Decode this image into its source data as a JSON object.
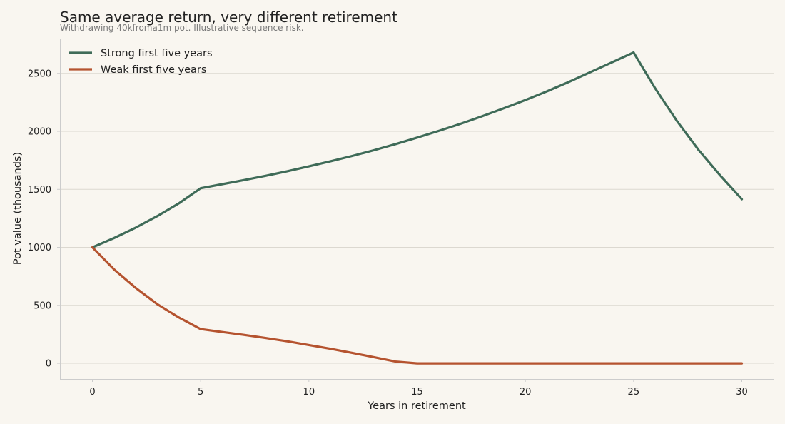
{
  "chart_data": {
    "type": "line",
    "title": "Same average return, very different retirement",
    "subtitle": "Withdrawing 40kfroma1m pot. Illustrative sequence risk.",
    "xlabel": "Years in retirement",
    "ylabel": "Pot value (thousands)",
    "xlim": [
      -1.5,
      31.5
    ],
    "ylim": [
      -135,
      2800
    ],
    "x_ticks": [
      0,
      5,
      10,
      15,
      20,
      25,
      30
    ],
    "y_ticks": [
      0,
      500,
      1000,
      1500,
      2000,
      2500
    ],
    "grid": "horizontal",
    "legend_position": "top-left",
    "x": [
      0,
      1,
      2,
      3,
      4,
      5,
      6,
      7,
      8,
      9,
      10,
      11,
      12,
      13,
      14,
      15,
      16,
      17,
      18,
      19,
      20,
      21,
      22,
      23,
      24,
      25,
      26,
      27,
      28,
      29,
      30
    ],
    "series": [
      {
        "name": "Strong first five years",
        "color": "#3f6b58",
        "values": [
          1000,
          1080,
          1170,
          1270,
          1380,
          1510,
          1545,
          1580,
          1617,
          1656,
          1698,
          1742,
          1788,
          1837,
          1890,
          1946,
          2004,
          2065,
          2130,
          2198,
          2270,
          2345,
          2425,
          2510,
          2595,
          2680,
          2370,
          2090,
          1840,
          1620,
          1415
        ]
      },
      {
        "name": "Weak first five years",
        "color": "#b5532f",
        "values": [
          1000,
          810,
          650,
          510,
          395,
          295,
          270,
          245,
          218,
          190,
          158,
          125,
          90,
          53,
          15,
          0,
          0,
          0,
          0,
          0,
          0,
          0,
          0,
          0,
          0,
          0,
          0,
          0,
          0,
          0,
          0
        ]
      }
    ]
  }
}
